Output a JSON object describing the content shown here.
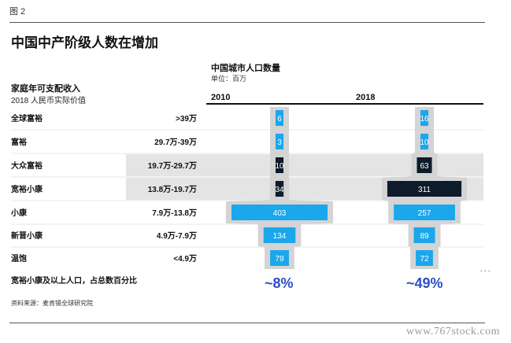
{
  "figure_label": "图 2",
  "title": "中国中产阶级人数在增加",
  "column_header": {
    "title": "中国城市人口数量",
    "unit": "单位：百万"
  },
  "row_header": {
    "title": "家庭年可支配收入",
    "subtitle": "2018 人民币实际价值"
  },
  "footer_label": "宽裕小康及以上人口，占总数百分比",
  "source": "资料来源：麦肯锡全球研究院",
  "watermark": "www.767stock.com",
  "colors": {
    "light_blue": "#1aa7ec",
    "dark_navy": "#0d1b2a",
    "band_gray": "#e4e4e4",
    "percent_blue": "#2d4ec8"
  },
  "chart_data": {
    "type": "bar",
    "years": [
      "2010",
      "2018"
    ],
    "categories": [
      "全球富裕",
      "富裕",
      "大众富裕",
      "宽裕小康",
      "小康",
      "新晋小康",
      "温饱"
    ],
    "income_ranges": [
      ">39万",
      "29.7万-39万",
      "19.7万-29.7万",
      "13.8万-19.7万",
      "7.9万-13.8万",
      "4.9万-7.9万",
      "<4.9万"
    ],
    "series": [
      {
        "name": "2010",
        "values": [
          6,
          3,
          10,
          34,
          403,
          134,
          79
        ]
      },
      {
        "name": "2018",
        "values": [
          16,
          10,
          63,
          311,
          257,
          89,
          72
        ]
      }
    ],
    "percent_affluent": [
      "~8%",
      "~49%"
    ]
  }
}
